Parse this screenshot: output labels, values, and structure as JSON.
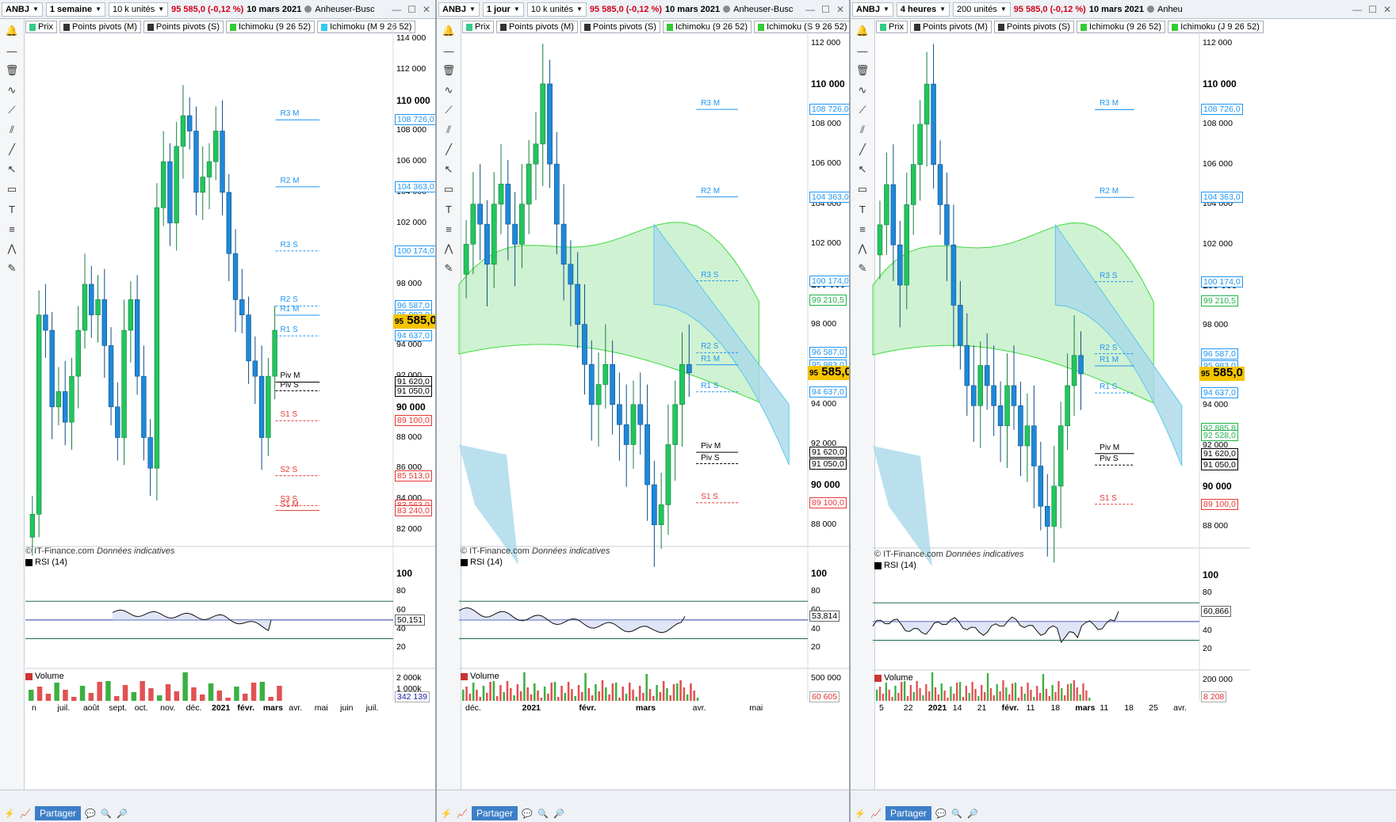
{
  "colors": {
    "up_candle": "#22c55e",
    "down_candle": "#1e88d8",
    "cloud_green": "#bfeec3",
    "cloud_blue": "#a9d8ea",
    "rsi_green": "#1b6b4a",
    "rsi_blue": "#2b3aa0",
    "pivot_blue": "#2196f3",
    "pivot_red": "#e53935",
    "vol_red": "#e05252",
    "vol_green": "#3cb043",
    "current_price_bg": "#f5c400"
  },
  "common": {
    "ticker": "ANBJ",
    "price_change": "95 585,0 (-0,12 %)",
    "date": "10 mars 2021",
    "company": "Anheuser-Busch",
    "legend": {
      "prix": "Prix",
      "pivots_m": "Points pivots (M)",
      "pivots_s": "Points pivots (S)",
      "ichimoku": "Ichimoku (9 26 52)"
    },
    "copyright": "© IT-Finance.com",
    "copyright_note": "Données indicatives",
    "rsi_label": "RSI (14)",
    "volume_label": "Volume",
    "share_label": "Partager",
    "current_price_small": "95",
    "current_price_big": "585,0"
  },
  "panels": [
    {
      "period": "1 semaine",
      "units": "10 k unités",
      "company": "Anheuser-Busc",
      "ichimoku2": "Ichimoku (M 9 26 52)",
      "price_axis": [
        "114 000",
        "112 000",
        "110 000",
        "108 000",
        "106 000",
        "104 000",
        "102 000",
        "100 000",
        "98 000",
        "96 000",
        "94 000",
        "92 000",
        "90 000",
        "88 000",
        "86 000",
        "84 000",
        "82 000"
      ],
      "price_boxes": [
        "108 726,0",
        "104 363,0",
        "100 174,0",
        "96 587,0",
        "95 983,0",
        "94 637,0",
        "91 620,0",
        "91 050,0",
        "89 100,0",
        "85 513,0",
        "83 563,0",
        "83 240,0"
      ],
      "pivots": [
        "R3 M",
        "R2 M",
        "R3 S",
        "R2 S",
        "R1 M",
        "R1 S",
        "Piv M",
        "Piv S",
        "S1 S",
        "S2 S",
        "S3 S",
        "S1 M"
      ],
      "rsi_axis": [
        "100",
        "80",
        "60",
        "40",
        "20"
      ],
      "rsi_value": "50,151",
      "vol_axis": [
        "2 000k",
        "1 000k"
      ],
      "vol_value": "342 139",
      "x_labels": [
        "n",
        "juil.",
        "août",
        "sept.",
        "oct.",
        "nov.",
        "déc.",
        "2021",
        "févr.",
        "mars",
        "avr.",
        "mai",
        "juin",
        "juil."
      ]
    },
    {
      "period": "1 jour",
      "units": "10 k unités",
      "company": "Anheuser-Busc",
      "ichimoku2": "Ichimoku (S 9 26 52)",
      "price_axis": [
        "112 000",
        "110 000",
        "108 000",
        "106 000",
        "104 000",
        "102 000",
        "100 000",
        "98 000",
        "96 000",
        "94 000",
        "92 000",
        "90 000",
        "88 000"
      ],
      "price_boxes": [
        "108 726,0",
        "104 363,0",
        "100 174,0",
        "99 210,5",
        "96 587,0",
        "95 983,0",
        "94 637,0",
        "91 620,0",
        "91 050,0",
        "89 100,0"
      ],
      "pivots": [
        "R3 M",
        "R2 M",
        "R3 S",
        "R2 S",
        "R1 M",
        "R1 S",
        "Piv M",
        "Piv S",
        "S1 S"
      ],
      "rsi_axis": [
        "100",
        "80",
        "60",
        "40",
        "20"
      ],
      "rsi_value": "53,814",
      "vol_axis": [
        "500 000"
      ],
      "vol_value": "60 605",
      "x_labels": [
        "déc.",
        "2021",
        "févr.",
        "mars",
        "avr.",
        "mai"
      ]
    },
    {
      "period": "4 heures",
      "units": "200 unités",
      "company": "Anheu",
      "ichimoku2": "Ichimoku (J 9 26 52)",
      "price_axis": [
        "112 000",
        "110 000",
        "108 000",
        "106 000",
        "104 000",
        "102 000",
        "100 000",
        "98 000",
        "96 000",
        "94 000",
        "92 000",
        "90 000",
        "88 000"
      ],
      "price_boxes": [
        "108 726,0",
        "104 363,0",
        "100 174,0",
        "99 210,5",
        "96 587,0",
        "95 983,0",
        "94 637,0",
        "92 885,8",
        "92 528,0",
        "91 620,0",
        "91 050,0",
        "89 100,0"
      ],
      "pivots": [
        "R3 M",
        "R2 M",
        "R3 S",
        "R1 M",
        "R2 S",
        "R1 S",
        "Piv M",
        "Piv S",
        "S1 S"
      ],
      "rsi_axis": [
        "100",
        "80",
        "60",
        "40",
        "20"
      ],
      "rsi_value": "60,866",
      "vol_axis": [
        "200 000"
      ],
      "vol_value": "8 208",
      "x_labels": [
        "5",
        "22",
        "2021",
        "14",
        "21",
        "févr.",
        "11",
        "18",
        "mars",
        "11",
        "18",
        "25",
        "avr."
      ]
    }
  ],
  "chart_data": [
    {
      "type": "candlestick",
      "title": "ANBJ — 1 semaine",
      "ylim": [
        81000,
        115000
      ],
      "series": [
        {
          "name": "Prix",
          "values": [
            83000,
            96000,
            95000,
            90000,
            91000,
            89000,
            92000,
            95000,
            98000,
            96000,
            97000,
            94000,
            90000,
            88000,
            95000,
            97000,
            92000,
            88000,
            86000,
            103000,
            106000,
            102000,
            107000,
            109000,
            108000,
            104000,
            105000,
            106000,
            108000,
            104000,
            100000,
            97000,
            96000,
            93000,
            92000,
            88000,
            92000,
            95000
          ]
        }
      ],
      "pivots_M": {
        "R3": 108726,
        "R2": 104363,
        "R1": 95983,
        "Piv": 91620,
        "S1": 83240
      },
      "pivots_S": {
        "R3": 100174,
        "R2": 96587,
        "R1": 94637,
        "Piv": 91050,
        "S1": 89100,
        "S2": 85513,
        "S3": 83563
      },
      "rsi": {
        "last": 50.151,
        "overbought": 70,
        "oversold": 30
      },
      "volume_last": 342139
    },
    {
      "type": "candlestick",
      "title": "ANBJ — 1 jour",
      "ylim": [
        87000,
        113000
      ],
      "series": [
        {
          "name": "Prix",
          "values": [
            102000,
            104000,
            103000,
            101000,
            104000,
            105000,
            103000,
            102000,
            104000,
            106000,
            107000,
            110000,
            106000,
            103000,
            101000,
            100000,
            98000,
            96000,
            94000,
            95000,
            96000,
            94000,
            93000,
            92000,
            94000,
            93000,
            90000,
            88000,
            89000,
            92000,
            94000,
            96000,
            95585
          ]
        }
      ],
      "pivots_M": {
        "R3": 108726,
        "R2": 104363,
        "R1": 95983,
        "Piv": 91620
      },
      "pivots_S": {
        "R3": 100174,
        "R2": 96587,
        "R1": 94637,
        "Piv": 91050,
        "S1": 89100
      },
      "ichimoku_last": 99210.5,
      "rsi": {
        "last": 53.814,
        "overbought": 70,
        "oversold": 30
      },
      "volume_last": 60605
    },
    {
      "type": "candlestick",
      "title": "ANBJ — 4 heures",
      "ylim": [
        87000,
        113000
      ],
      "series": [
        {
          "name": "Prix",
          "values": [
            103000,
            105000,
            102000,
            100000,
            104000,
            106000,
            108000,
            110000,
            106000,
            104000,
            102000,
            99000,
            97000,
            95000,
            94000,
            96000,
            95000,
            94000,
            93000,
            95000,
            94000,
            92000,
            93000,
            91000,
            89000,
            88000,
            90000,
            93000,
            95000,
            96500,
            95585
          ]
        }
      ],
      "pivots_M": {
        "R3": 108726,
        "R2": 104363,
        "R1": 95983,
        "Piv": 91620
      },
      "pivots_S": {
        "R3": 100174,
        "R2": 96587,
        "R1": 94637,
        "Piv": 91050,
        "S1": 89100
      },
      "ichimoku_last": [
        99210.5,
        92885.8,
        92528.0
      ],
      "rsi": {
        "last": 60.866,
        "overbought": 70,
        "oversold": 30
      },
      "volume_last": 8208
    }
  ]
}
